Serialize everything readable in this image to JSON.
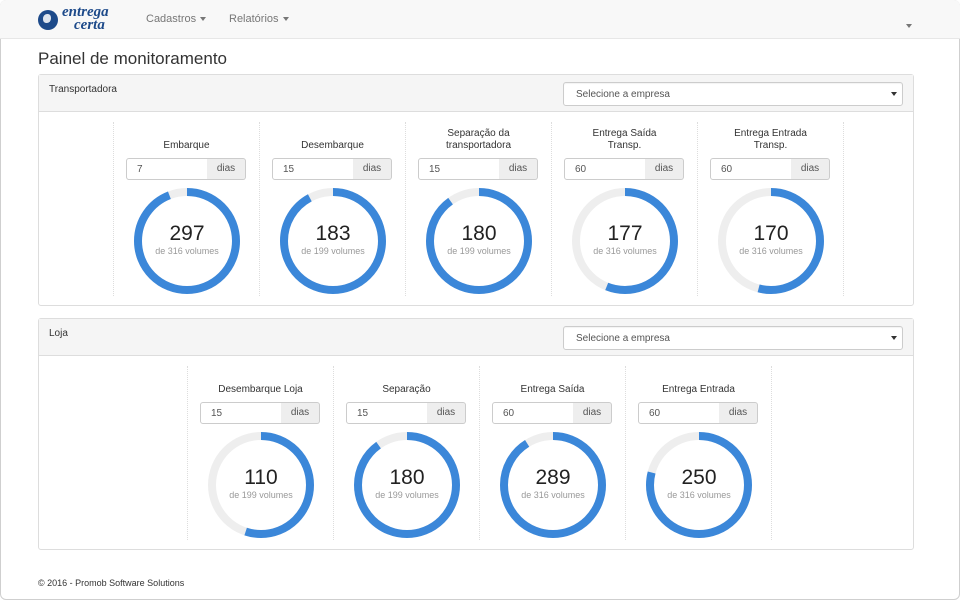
{
  "brand": {
    "line1": "entrega",
    "line2": "certa"
  },
  "nav": {
    "cadastros": "Cadastros",
    "relatorios": "Relatórios"
  },
  "page_title": "Painel de monitoramento",
  "colors": {
    "gauge_fill": "#3b87d9",
    "gauge_track": "#eeeeee"
  },
  "panels": [
    {
      "title": "Transportadora",
      "select_placeholder": "Selecione a empresa",
      "gauges": [
        {
          "label": "Embarque",
          "days": "7",
          "unit": "dias",
          "value": "297",
          "subtitle": "de 316 volumes",
          "fraction": 0.94
        },
        {
          "label": "Desembarque",
          "days": "15",
          "unit": "dias",
          "value": "183",
          "subtitle": "de 199 volumes",
          "fraction": 0.92
        },
        {
          "label": "Separação da transportadora",
          "days": "15",
          "unit": "dias",
          "value": "180",
          "subtitle": "de 199 volumes",
          "fraction": 0.9
        },
        {
          "label": "Entrega Saída Transp.",
          "days": "60",
          "unit": "dias",
          "value": "177",
          "subtitle": "de 316 volumes",
          "fraction": 0.56
        },
        {
          "label": "Entrega Entrada Transp.",
          "days": "60",
          "unit": "dias",
          "value": "170",
          "subtitle": "de 316 volumes",
          "fraction": 0.54
        }
      ]
    },
    {
      "title": "Loja",
      "select_placeholder": "Selecione a empresa",
      "gauges": [
        {
          "label": "Desembarque Loja",
          "days": "15",
          "unit": "dias",
          "value": "110",
          "subtitle": "de 199 volumes",
          "fraction": 0.55
        },
        {
          "label": "Separação",
          "days": "15",
          "unit": "dias",
          "value": "180",
          "subtitle": "de 199 volumes",
          "fraction": 0.9
        },
        {
          "label": "Entrega Saída",
          "days": "60",
          "unit": "dias",
          "value": "289",
          "subtitle": "de 316 volumes",
          "fraction": 0.91
        },
        {
          "label": "Entrega Entrada",
          "days": "60",
          "unit": "dias",
          "value": "250",
          "subtitle": "de 316 volumes",
          "fraction": 0.79
        }
      ]
    }
  ],
  "footer": "© 2016 - Promob Software Solutions"
}
